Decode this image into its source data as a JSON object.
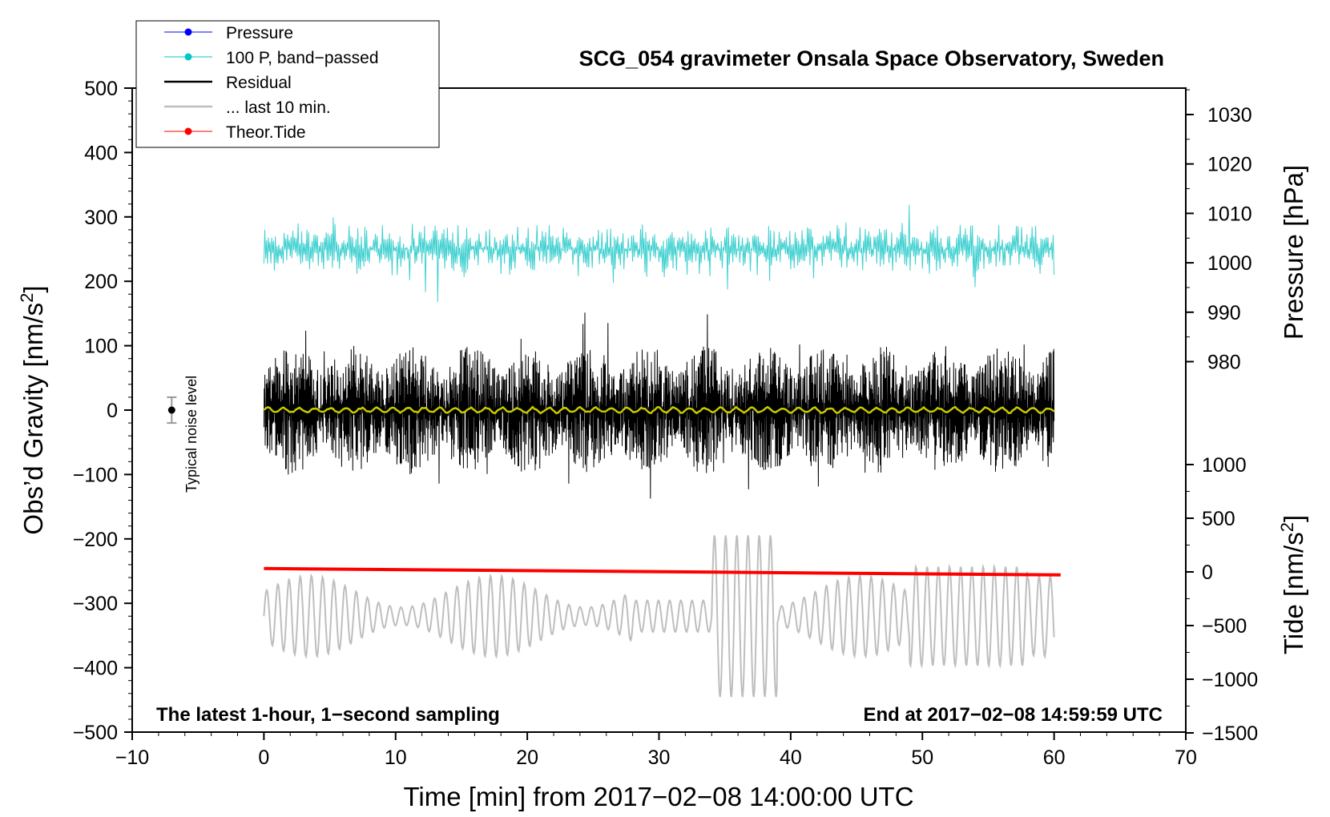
{
  "chart_data": {
    "type": "line",
    "title": "SCG_054 gravimeter Onsala Space Observatory, Sweden",
    "xlabel": "Time [min] from 2017−02−08 14:00:00 UTC",
    "ylabel_left": "Obs’d Gravity [nm/s²]",
    "ylabel_right_top": "Pressure [hPa]",
    "ylabel_right_bottom": "Tide [nm/s²]",
    "xlim": [
      -10,
      70
    ],
    "ylim": [
      -500,
      500
    ],
    "x_ticks": [
      "−10",
      "0",
      "10",
      "20",
      "30",
      "40",
      "50",
      "60",
      "70"
    ],
    "y_ticks": [
      "500",
      "400",
      "300",
      "200",
      "100",
      "0",
      "−100",
      "−200",
      "−300",
      "−400",
      "−500"
    ],
    "pressure_ticks": [
      "1030",
      "1020",
      "1010",
      "1000",
      "990",
      "980"
    ],
    "tide_ticks": [
      "1000",
      "500",
      "0",
      "−500",
      "−1000",
      "−1500"
    ],
    "annotation_left": "The latest 1-hour, 1−second sampling",
    "annotation_right": "End at 2017−02−08 14:59:59 UTC",
    "noise_label": "Typical noise level",
    "noise_level": {
      "x": -7,
      "value": 0,
      "plus_minus": 20
    },
    "legend": [
      {
        "label": "Pressure",
        "color": "#0000ff",
        "marker": true
      },
      {
        "label": "100 P, band−passed",
        "color": "#00c8c8",
        "marker": true
      },
      {
        "label": "Residual",
        "color": "#000000",
        "marker": false
      },
      {
        "label": "... last 10 min.",
        "color": "#bebebe",
        "marker": false
      },
      {
        "label": "Theor.Tide",
        "color": "#ff0000",
        "marker": true
      }
    ],
    "series": [
      {
        "name": "100 P, band-passed",
        "color": "#40d0d0",
        "center": 250,
        "amplitude": 45,
        "x_range": [
          0,
          60
        ]
      },
      {
        "name": "Residual",
        "color": "#000000",
        "center": 0,
        "amplitude": 100,
        "x_range": [
          0,
          60
        ]
      },
      {
        "name": "Residual smoothed",
        "color": "#c8c800",
        "center": 0,
        "amplitude": 5,
        "x_range": [
          0,
          60
        ]
      },
      {
        "name": "... last 10 min.",
        "color": "#bebebe",
        "center": -320,
        "amplitude": 70,
        "x_range": [
          0,
          60
        ]
      },
      {
        "name": "Theor.Tide",
        "color": "#ff0000",
        "start": -246,
        "end": -256,
        "x_range": [
          0,
          60.5
        ]
      }
    ]
  }
}
